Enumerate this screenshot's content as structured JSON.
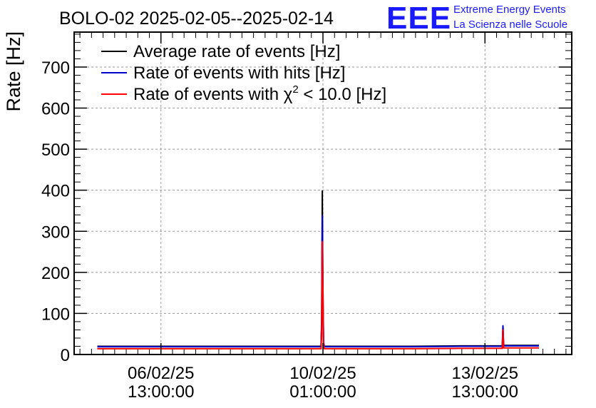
{
  "header": {
    "title": "BOLO-02 2025-02-05--2025-02-14",
    "logo_text": "EEE",
    "logo_line1": "Extreme Energy Events",
    "logo_line2": "La Scienza nelle Scuole"
  },
  "chart_data": {
    "type": "line",
    "title": "BOLO-02 2025-02-05--2025-02-14",
    "xlabel": "",
    "ylabel": "Rate [Hz]",
    "ylim": [
      0,
      785
    ],
    "xlim": [
      "2025-02-04T16:00:00",
      "2025-02-15T10:00:00"
    ],
    "grid": true,
    "legend_position": "top-left",
    "y_ticks": [
      0,
      100,
      200,
      300,
      400,
      500,
      600,
      700
    ],
    "x_ticks": [
      {
        "date": "06/02/25",
        "time": "13:00:00",
        "at": "2025-02-06T13:00:00"
      },
      {
        "date": "10/02/25",
        "time": "01:00:00",
        "at": "2025-02-10T01:00:00"
      },
      {
        "date": "13/02/25",
        "time": "13:00:00",
        "at": "2025-02-13T13:00:00"
      }
    ],
    "series": [
      {
        "name": "Average rate of events [Hz]",
        "color": "#000000",
        "x": [
          "2025-02-05T04:00:00",
          "2025-02-06T00:00:00",
          "2025-02-07T00:00:00",
          "2025-02-08T00:00:00",
          "2025-02-09T00:00:00",
          "2025-02-10T00:00:00",
          "2025-02-10T00:20:00",
          "2025-02-10T00:40:00",
          "2025-02-10T01:00:00",
          "2025-02-10T01:20:00",
          "2025-02-10T01:40:00",
          "2025-02-11T00:00:00",
          "2025-02-12T00:00:00",
          "2025-02-13T00:00:00",
          "2025-02-13T22:00:00",
          "2025-02-13T22:20:00",
          "2025-02-13T22:40:00",
          "2025-02-14T12:00:00",
          "2025-02-14T17:00:00"
        ],
        "y": [
          20,
          20,
          20,
          20,
          20,
          20,
          80,
          398,
          120,
          30,
          20,
          20,
          20,
          21,
          21,
          68,
          22,
          22,
          22
        ]
      },
      {
        "name": "Rate of events with hits [Hz]",
        "color": "#0000cc",
        "x": [
          "2025-02-05T04:00:00",
          "2025-02-06T00:00:00",
          "2025-02-07T00:00:00",
          "2025-02-08T00:00:00",
          "2025-02-09T00:00:00",
          "2025-02-10T00:00:00",
          "2025-02-10T00:20:00",
          "2025-02-10T00:40:00",
          "2025-02-10T01:00:00",
          "2025-02-10T01:20:00",
          "2025-02-10T01:40:00",
          "2025-02-11T00:00:00",
          "2025-02-12T00:00:00",
          "2025-02-13T00:00:00",
          "2025-02-13T22:00:00",
          "2025-02-13T22:20:00",
          "2025-02-13T22:40:00",
          "2025-02-14T12:00:00",
          "2025-02-14T17:00:00"
        ],
        "y": [
          19,
          19,
          19,
          19,
          19,
          19,
          70,
          338,
          155,
          28,
          19,
          19,
          19,
          20,
          20,
          70,
          21,
          21,
          21
        ]
      },
      {
        "name": "Rate of events with χ² < 10.0 [Hz]",
        "name_prefix": "Rate of events with χ",
        "name_sup": "2",
        "name_suffix": " < 10.0 [Hz]",
        "color": "#ff0000",
        "x": [
          "2025-02-05T04:00:00",
          "2025-02-06T00:00:00",
          "2025-02-07T00:00:00",
          "2025-02-08T00:00:00",
          "2025-02-09T00:00:00",
          "2025-02-10T00:00:00",
          "2025-02-10T00:20:00",
          "2025-02-10T00:40:00",
          "2025-02-10T01:00:00",
          "2025-02-10T01:20:00",
          "2025-02-10T01:40:00",
          "2025-02-11T00:00:00",
          "2025-02-12T00:00:00",
          "2025-02-13T00:00:00",
          "2025-02-13T22:00:00",
          "2025-02-13T22:20:00",
          "2025-02-13T22:40:00",
          "2025-02-14T12:00:00",
          "2025-02-14T17:00:00"
        ],
        "y": [
          14,
          14,
          14,
          14,
          14,
          14,
          50,
          275,
          150,
          20,
          14,
          14,
          14,
          15,
          15,
          60,
          16,
          16,
          16
        ]
      }
    ]
  }
}
